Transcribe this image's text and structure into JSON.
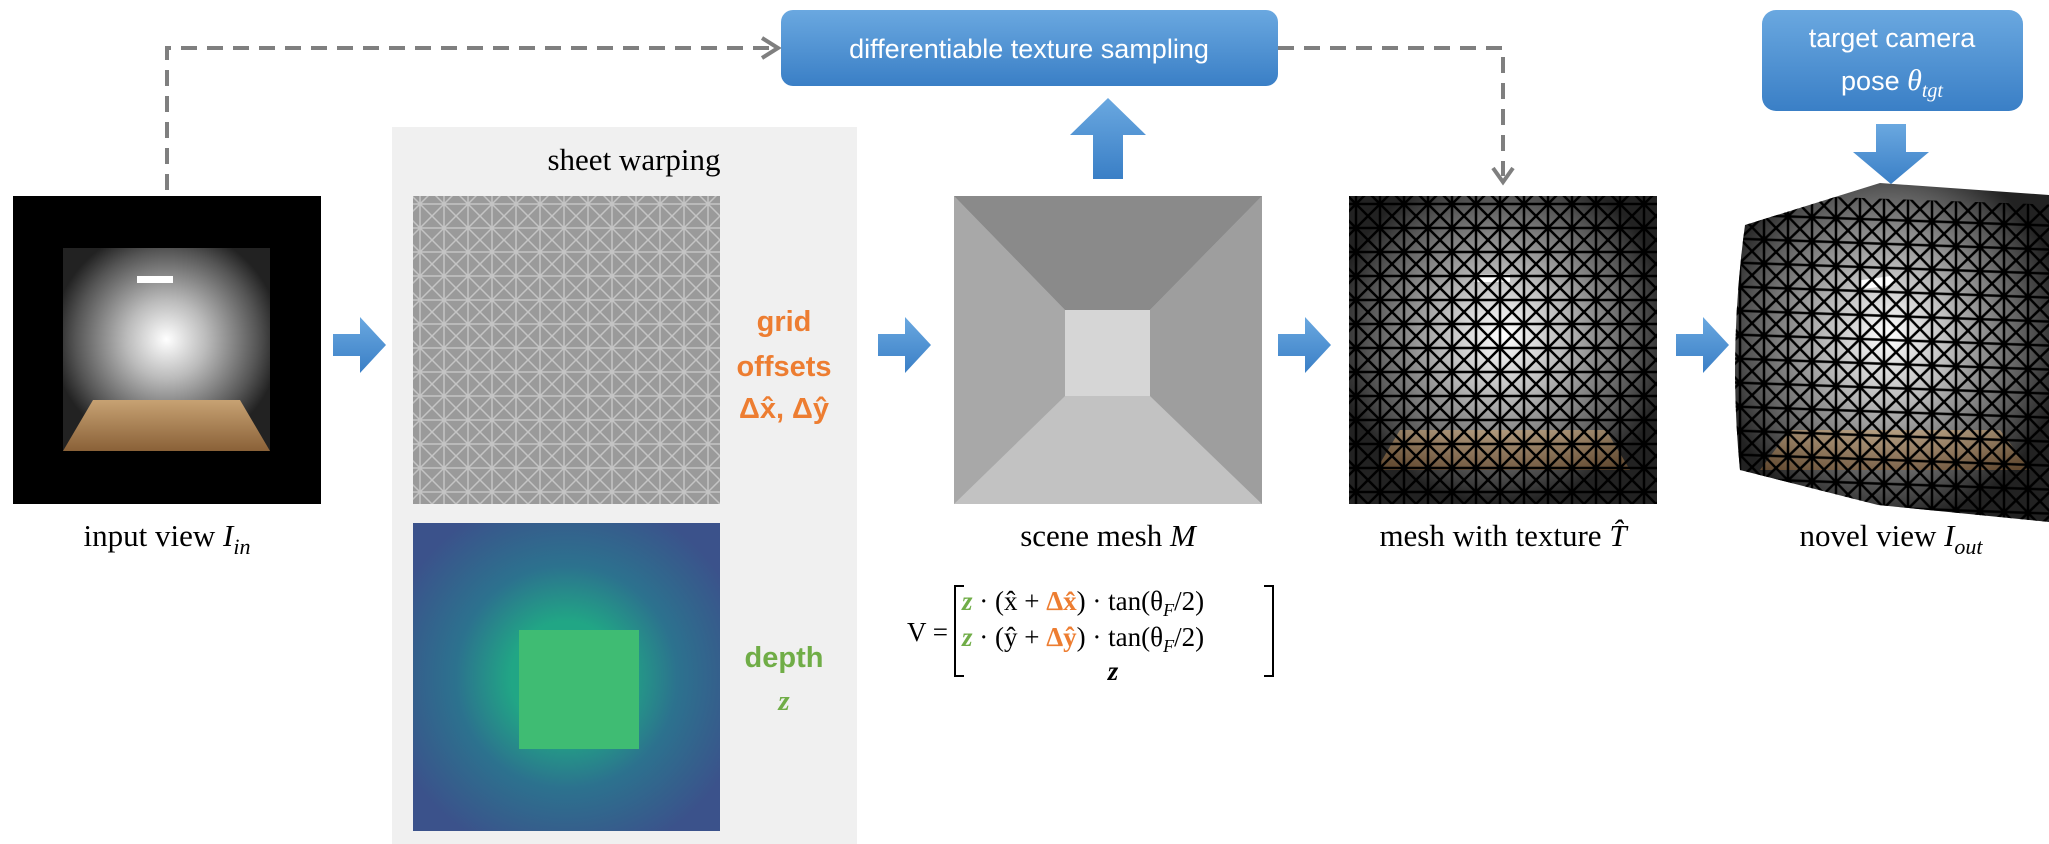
{
  "boxes": {
    "texture_sampling": "differentiable texture sampling",
    "target_camera": {
      "line1": "target camera",
      "line2": "pose ",
      "symbol": "θ",
      "subscript": "tgt"
    }
  },
  "sheet_warping": {
    "title": "sheet warping",
    "grid_offsets": {
      "line1": "grid",
      "line2": "offsets",
      "line3": "Δx̂, Δŷ",
      "color": "#ed7d31"
    },
    "depth": {
      "line1": "depth",
      "line2": "z",
      "color": "#70ad47"
    }
  },
  "captions": [
    {
      "text": "input view ",
      "symbol": "I",
      "subscript": "in"
    },
    {
      "text": "scene mesh ",
      "symbol": "M"
    },
    {
      "text": "mesh with texture ",
      "symbol": "T̂"
    },
    {
      "text": "novel view ",
      "symbol": "I",
      "subscript": "out"
    }
  ],
  "formula": {
    "lhs": "V =",
    "row1": [
      {
        "text": "z",
        "color": "#70ad47"
      },
      {
        "text": " · (x̂ + ",
        "color": "#000000"
      },
      {
        "text": "Δx̂",
        "color": "#ed7d31"
      },
      {
        "text": ") · tan(θ",
        "color": "#000000"
      }
    ],
    "row1_sub": "F",
    "row1_end": "/2)",
    "row2": [
      {
        "text": "z",
        "color": "#70ad47"
      },
      {
        "text": " · (ŷ + ",
        "color": "#000000"
      },
      {
        "text": "Δŷ",
        "color": "#ed7d31"
      },
      {
        "text": ") · tan(θ",
        "color": "#000000"
      }
    ],
    "row2_sub": "F",
    "row2_end": "/2)",
    "row3": {
      "text": "z",
      "color": "#70ad47"
    }
  }
}
